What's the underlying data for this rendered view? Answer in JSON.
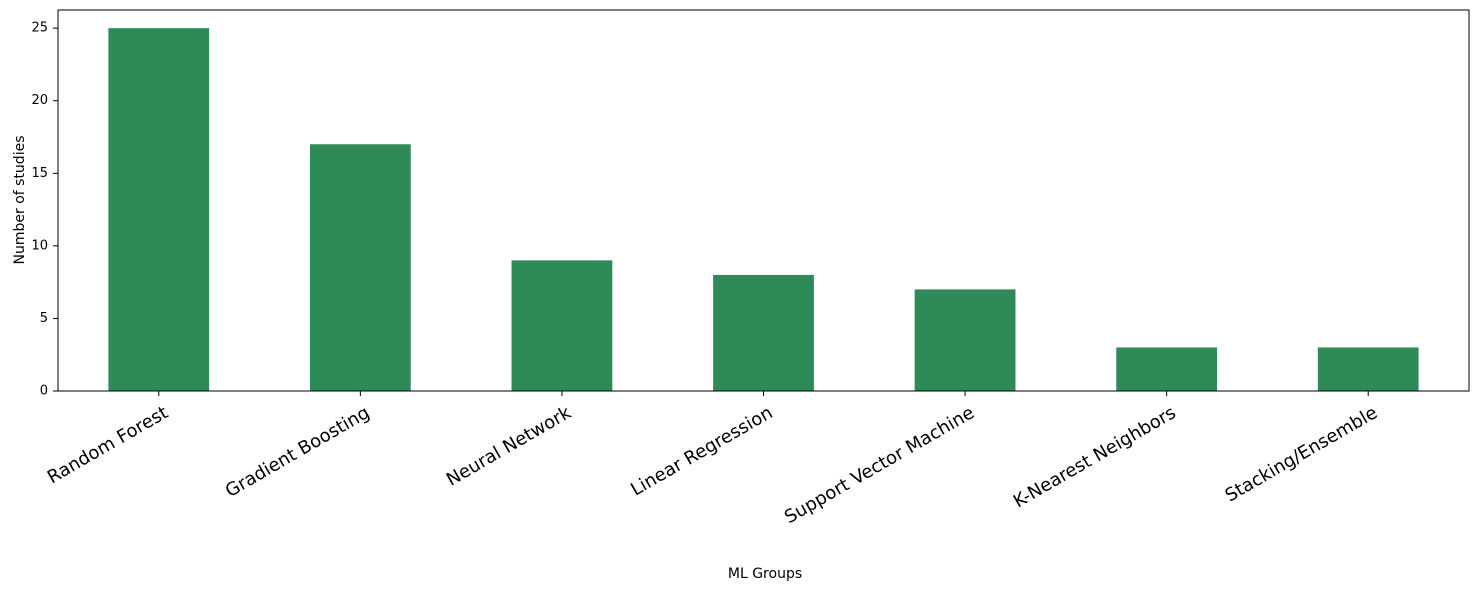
{
  "chart_data": {
    "type": "bar",
    "x_label": "ML Groups",
    "y_label": "Number of studies",
    "categories": [
      "Random Forest",
      "Gradient Boosting",
      "Neural Network",
      "Linear Regression",
      "Support Vector Machine",
      "K-Nearest Neighbors",
      "Stacking/Ensemble"
    ],
    "values": [
      25,
      17,
      9,
      8,
      7,
      3,
      3
    ],
    "color": "#2e8b57",
    "ylim": [
      0,
      26.25
    ],
    "yticks": [
      0,
      5,
      10,
      15,
      20,
      25
    ],
    "grid": false
  }
}
